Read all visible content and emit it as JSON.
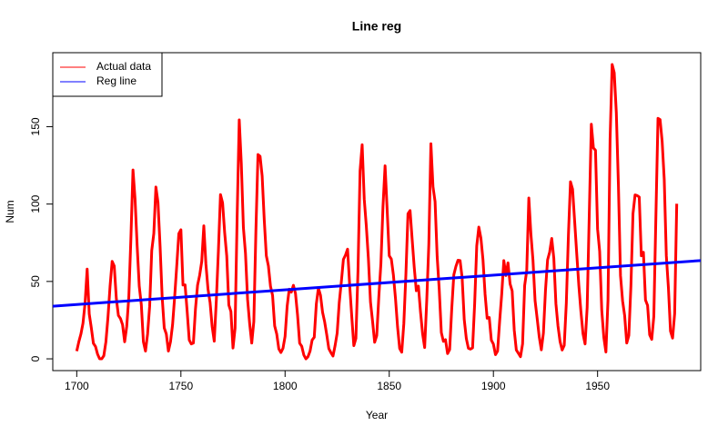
{
  "chart_data": {
    "type": "line",
    "title": "Line reg",
    "x_label": "Year",
    "y_label": "Num",
    "series": [
      {
        "name": "Actual data",
        "color": "#ff0000",
        "x": [
          1700,
          1701,
          1702,
          1703,
          1704,
          1705,
          1706,
          1707,
          1708,
          1709,
          1710,
          1711,
          1712,
          1713,
          1714,
          1715,
          1716,
          1717,
          1718,
          1719,
          1720,
          1721,
          1722,
          1723,
          1724,
          1725,
          1726,
          1727,
          1728,
          1729,
          1730,
          1731,
          1732,
          1733,
          1734,
          1735,
          1736,
          1737,
          1738,
          1739,
          1740,
          1741,
          1742,
          1743,
          1744,
          1745,
          1746,
          1747,
          1748,
          1749,
          1750,
          1751,
          1752,
          1753,
          1754,
          1755,
          1756,
          1757,
          1758,
          1759,
          1760,
          1761,
          1762,
          1763,
          1764,
          1765,
          1766,
          1767,
          1768,
          1769,
          1770,
          1771,
          1772,
          1773,
          1774,
          1775,
          1776,
          1777,
          1778,
          1779,
          1780,
          1781,
          1782,
          1783,
          1784,
          1785,
          1786,
          1787,
          1788,
          1789,
          1790,
          1791,
          1792,
          1793,
          1794,
          1795,
          1796,
          1797,
          1798,
          1799,
          1800,
          1801,
          1802,
          1803,
          1804,
          1805,
          1806,
          1807,
          1808,
          1809,
          1810,
          1811,
          1812,
          1813,
          1814,
          1815,
          1816,
          1817,
          1818,
          1819,
          1820,
          1821,
          1822,
          1823,
          1824,
          1825,
          1826,
          1827,
          1828,
          1829,
          1830,
          1831,
          1832,
          1833,
          1834,
          1835,
          1836,
          1837,
          1838,
          1839,
          1840,
          1841,
          1842,
          1843,
          1844,
          1845,
          1846,
          1847,
          1848,
          1849,
          1850,
          1851,
          1852,
          1853,
          1854,
          1855,
          1856,
          1857,
          1858,
          1859,
          1860,
          1861,
          1862,
          1863,
          1864,
          1865,
          1866,
          1867,
          1868,
          1869,
          1870,
          1871,
          1872,
          1873,
          1874,
          1875,
          1876,
          1877,
          1878,
          1879,
          1880,
          1881,
          1882,
          1883,
          1884,
          1885,
          1886,
          1887,
          1888,
          1889,
          1890,
          1891,
          1892,
          1893,
          1894,
          1895,
          1896,
          1897,
          1898,
          1899,
          1900,
          1901,
          1902,
          1903,
          1904,
          1905,
          1906,
          1907,
          1908,
          1909,
          1910,
          1911,
          1912,
          1913,
          1914,
          1915,
          1916,
          1917,
          1918,
          1919,
          1920,
          1921,
          1922,
          1923,
          1924,
          1925,
          1926,
          1927,
          1928,
          1929,
          1930,
          1931,
          1932,
          1933,
          1934,
          1935,
          1936,
          1937,
          1938,
          1939,
          1940,
          1941,
          1942,
          1943,
          1944,
          1945,
          1946,
          1947,
          1948,
          1949,
          1950,
          1951,
          1952,
          1953,
          1954,
          1955,
          1956,
          1957,
          1958,
          1959,
          1960,
          1961,
          1962,
          1963,
          1964,
          1965,
          1966,
          1967,
          1968,
          1969,
          1970,
          1971,
          1972,
          1973,
          1974,
          1975,
          1976,
          1977,
          1978,
          1979,
          1980,
          1981,
          1982,
          1983,
          1984,
          1985,
          1986,
          1987,
          1988
        ],
        "values": [
          5,
          11,
          16,
          23,
          36,
          58,
          29,
          20,
          10,
          8,
          3,
          0,
          0,
          2,
          11,
          27,
          47,
          63,
          60,
          39,
          28,
          26,
          22,
          11,
          21,
          40,
          78,
          122,
          103,
          73,
          47,
          35,
          11,
          5,
          16,
          34,
          70,
          81,
          111,
          101,
          73,
          40,
          20,
          16,
          5,
          11,
          22,
          40,
          60,
          80.9,
          83.4,
          47.7,
          47.8,
          30.7,
          12.2,
          9.6,
          10.2,
          32.4,
          47.6,
          54,
          62.9,
          85.9,
          61.2,
          45.1,
          36.4,
          20.9,
          11.4,
          37.8,
          69.8,
          106.1,
          100.8,
          81.6,
          66.5,
          34.8,
          30.6,
          7,
          19.8,
          92.5,
          154.4,
          125.9,
          84.8,
          68.1,
          38.5,
          22.8,
          10.2,
          24.1,
          82.9,
          132,
          130.9,
          118.1,
          89.9,
          66.6,
          60,
          46.9,
          41,
          21.3,
          16,
          6.4,
          4.1,
          6.8,
          14.5,
          34,
          45,
          43.1,
          47.5,
          42.2,
          28.1,
          10.1,
          8.1,
          2.5,
          0,
          1.4,
          5,
          12.2,
          13.9,
          35.4,
          45.8,
          41.1,
          30.1,
          23.9,
          15.6,
          6.6,
          4,
          1.8,
          8.5,
          16.6,
          36.3,
          49.6,
          64.2,
          67,
          70.9,
          47.8,
          27.5,
          8.5,
          13.2,
          56.9,
          121.5,
          138.3,
          103.2,
          85.7,
          64.6,
          36.7,
          24.2,
          10.7,
          15,
          40.1,
          61.5,
          98.5,
          124.7,
          96.3,
          66.6,
          64.5,
          54.1,
          39,
          20.6,
          6.7,
          4.3,
          22.7,
          54.8,
          93.8,
          95.8,
          77.2,
          59.1,
          44,
          47,
          30.5,
          16.3,
          7.3,
          37.6,
          74,
          139,
          111.2,
          101.6,
          66.2,
          44.7,
          17,
          11.3,
          12.4,
          3.4,
          6,
          32.3,
          54.3,
          59.7,
          63.7,
          63.5,
          52.2,
          25.4,
          13.1,
          6.8,
          6.3,
          7.1,
          35.6,
          73,
          85.1,
          78,
          64,
          41.8,
          26.2,
          26.7,
          12.1,
          9.5,
          2.7,
          5,
          24.4,
          42,
          63.5,
          53.8,
          62,
          48.5,
          43.9,
          18.6,
          5.7,
          3.6,
          1.4,
          9.6,
          47.4,
          57.1,
          103.9,
          80.6,
          63.6,
          37.6,
          26.1,
          14.2,
          5.8,
          16.7,
          44.3,
          63.9,
          69,
          77.8,
          64.9,
          35.7,
          21.2,
          11.1,
          5.7,
          8.7,
          36.1,
          79.7,
          114.4,
          109.6,
          88.8,
          67.8,
          47.5,
          30.6,
          16.3,
          9.6,
          33.2,
          92.6,
          151.6,
          136.3,
          134.7,
          83.9,
          69.4,
          31.5,
          13.9,
          4.4,
          38,
          141.7,
          190.2,
          184.8,
          159,
          112.3,
          53.9,
          37.5,
          27.9,
          10.2,
          15.1,
          47,
          93.8,
          105.9,
          105.5,
          104.5,
          66.6,
          68.9,
          38,
          34.5,
          15.5,
          12.6,
          27.5,
          92.5,
          155.4,
          154.6,
          140.4,
          115.9,
          66.6,
          45.9,
          17.9,
          13.4,
          29.2,
          100.2
        ]
      },
      {
        "name": "Reg line",
        "color": "#0000ff",
        "x": [
          1688.5,
          1999.5
        ],
        "values": [
          34,
          63.5
        ]
      }
    ],
    "xlim": [
      1688.5,
      1999.5
    ],
    "xticks": [
      1700,
      1750,
      1800,
      1850,
      1900,
      1950
    ],
    "ylim": [
      -7.6,
      197.8
    ],
    "yticks": [
      0,
      50,
      100,
      150
    ],
    "legend": "top-left"
  }
}
